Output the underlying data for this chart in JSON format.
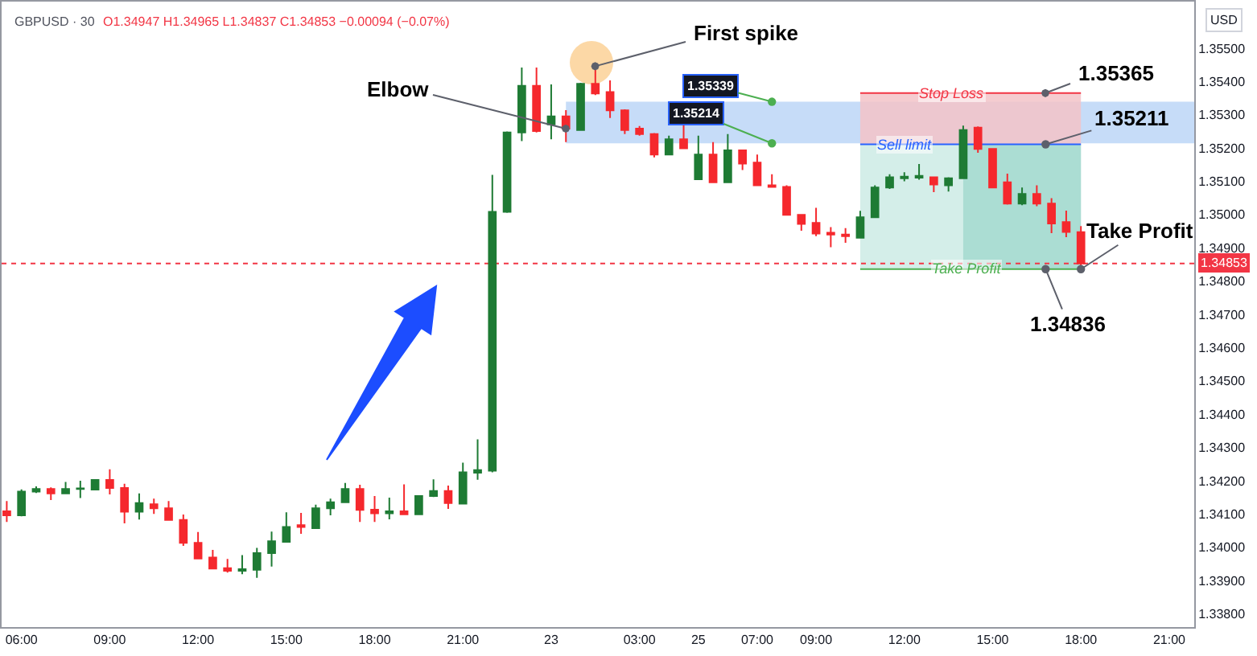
{
  "chart_data": {
    "type": "candlestick",
    "title": "GBPUSD · 30",
    "subtitle": "O1.34947 H1.34965 L1.34837 C1.34853 −0.00094 (−0.07%)",
    "ylabel": "USD",
    "categories": [
      null,
      "06:00",
      null,
      null,
      null,
      null,
      null,
      "09:00",
      null,
      null,
      null,
      null,
      null,
      "12:00",
      null,
      null,
      null,
      null,
      null,
      "15:00",
      null,
      null,
      null,
      null,
      null,
      "18:00",
      null,
      null,
      null,
      null,
      null,
      "21:00",
      null,
      null,
      null,
      null,
      null,
      "23",
      null,
      null,
      null,
      null,
      null,
      "03:00",
      null,
      null,
      null,
      "25",
      null,
      null,
      null,
      "07:00",
      null,
      null,
      null,
      "09:00",
      null,
      null,
      null,
      null,
      null,
      "12:00",
      null,
      null,
      null,
      null,
      null,
      "15:00",
      null,
      null,
      null,
      null,
      null,
      "18:00",
      null,
      null,
      null,
      null,
      null,
      "21:00",
      null
    ],
    "ohlc": [
      [
        1.34108,
        1.34139,
        1.34076,
        1.34096
      ],
      [
        1.34096,
        1.34174,
        1.34093,
        1.34167
      ],
      [
        1.34167,
        1.34183,
        1.34163,
        1.34175
      ],
      [
        1.34175,
        1.3418,
        1.34142,
        1.34162
      ],
      [
        1.34162,
        1.34196,
        1.34162,
        1.34175
      ],
      [
        1.34175,
        1.342,
        1.34148,
        1.34177
      ],
      [
        1.34173,
        1.34202,
        1.34173,
        1.34202
      ],
      [
        1.34202,
        1.34234,
        1.34159,
        1.34178
      ],
      [
        1.34178,
        1.34191,
        1.34072,
        1.34107
      ],
      [
        1.34107,
        1.34162,
        1.34083,
        1.34133
      ],
      [
        1.34129,
        1.34146,
        1.341,
        1.34117
      ],
      [
        1.34117,
        1.34139,
        1.34082,
        1.34082
      ],
      [
        1.34082,
        1.34098,
        1.34004,
        1.34013
      ],
      [
        1.34013,
        1.34046,
        1.33966,
        1.33966
      ],
      [
        1.33969,
        1.33992,
        1.33936,
        1.33936
      ],
      [
        1.33937,
        1.33965,
        1.33924,
        1.33929
      ],
      [
        1.33929,
        1.33976,
        1.33919,
        1.33934
      ],
      [
        1.33932,
        1.33998,
        1.33908,
        1.33982
      ],
      [
        1.33982,
        1.34047,
        1.33942,
        1.34018
      ],
      [
        1.34016,
        1.34105,
        1.34016,
        1.34061
      ],
      [
        1.34066,
        1.34103,
        1.3404,
        1.34061
      ],
      [
        1.34057,
        1.34128,
        1.34057,
        1.34117
      ],
      [
        1.34117,
        1.34146,
        1.34096,
        1.34135
      ],
      [
        1.34135,
        1.34193,
        1.34135,
        1.34175
      ],
      [
        1.34175,
        1.34188,
        1.34076,
        1.34112
      ],
      [
        1.34113,
        1.34154,
        1.34076,
        1.34102
      ],
      [
        1.34102,
        1.34149,
        1.34084,
        1.34108
      ],
      [
        1.34108,
        1.34189,
        1.34099,
        1.34099
      ],
      [
        1.34099,
        1.34154,
        1.34099,
        1.34154
      ],
      [
        1.34154,
        1.34204,
        1.34151,
        1.34169
      ],
      [
        1.34169,
        1.34185,
        1.34115,
        1.34133
      ],
      [
        1.34131,
        1.34254,
        1.34131,
        1.34225
      ],
      [
        1.34224,
        1.34324,
        1.34203,
        1.34232
      ],
      [
        1.3423,
        1.35119,
        1.34225,
        1.35008
      ],
      [
        1.35008,
        1.3525,
        1.35005,
        1.35247
      ],
      [
        1.35247,
        1.35442,
        1.35221,
        1.35387
      ],
      [
        1.35387,
        1.35442,
        1.35247,
        1.35251
      ],
      [
        1.35271,
        1.35391,
        1.35226,
        1.35295
      ],
      [
        1.35295,
        1.35314,
        1.35218,
        1.35258
      ],
      [
        1.35254,
        1.35396,
        1.35254,
        1.35393
      ],
      [
        1.35393,
        1.35448,
        1.35359,
        1.35364
      ],
      [
        1.35368,
        1.35403,
        1.3529,
        1.35313
      ],
      [
        1.35313,
        1.35316,
        1.35242,
        1.35254
      ],
      [
        1.35258,
        1.35266,
        1.35237,
        1.35242
      ],
      [
        1.35242,
        1.35245,
        1.35172,
        1.3518
      ],
      [
        1.3518,
        1.35237,
        1.3518,
        1.35226
      ],
      [
        1.35226,
        1.35269,
        1.35199,
        1.35199
      ],
      [
        1.35106,
        1.35237,
        1.35106,
        1.3518
      ],
      [
        1.3518,
        1.35218,
        1.35097,
        1.35097
      ],
      [
        1.35097,
        1.35242,
        1.35097,
        1.35193
      ],
      [
        1.35193,
        1.35193,
        1.35134,
        1.35153
      ],
      [
        1.35156,
        1.3518,
        1.35088,
        1.35088
      ],
      [
        1.35088,
        1.35121,
        1.35083,
        1.35083
      ],
      [
        1.35083,
        1.35088,
        1.34999,
        1.34999
      ],
      [
        1.34999,
        1.34999,
        1.34951,
        1.34972
      ],
      [
        1.34975,
        1.3502,
        1.34935,
        1.34943
      ],
      [
        1.34945,
        1.34962,
        1.34902,
        1.3494
      ],
      [
        1.3494,
        1.34959,
        1.34915,
        1.34935
      ],
      [
        1.3493,
        1.35011,
        1.3493,
        1.34992
      ],
      [
        1.34992,
        1.35088,
        1.34992,
        1.35081
      ],
      [
        1.35081,
        1.35121,
        1.35077,
        1.35112
      ],
      [
        1.35109,
        1.35127,
        1.351,
        1.35114
      ],
      [
        1.35111,
        1.35152,
        1.35105,
        1.35116
      ],
      [
        1.35112,
        1.35112,
        1.35067,
        1.3509
      ],
      [
        1.35088,
        1.35112,
        1.35069,
        1.35109
      ],
      [
        1.35109,
        1.35267,
        1.35109,
        1.35254
      ],
      [
        1.35261,
        1.35265,
        1.35186,
        1.35197
      ],
      [
        1.35197,
        1.35197,
        1.35081,
        1.35081
      ],
      [
        1.35097,
        1.35123,
        1.3503,
        1.35033
      ],
      [
        1.35033,
        1.35081,
        1.35028,
        1.35062
      ],
      [
        1.35062,
        1.35088,
        1.35025,
        1.35033
      ],
      [
        1.35033,
        1.35049,
        1.34944,
        1.34973
      ],
      [
        1.34977,
        1.35012,
        1.34932,
        1.34948
      ],
      [
        1.34947,
        1.34965,
        1.34837,
        1.34853
      ],
      null,
      null,
      null,
      null,
      null,
      null,
      null
    ],
    "colors": [
      "#f5282d",
      "#1e7b34",
      "#1e7b34",
      "#f5282d",
      "#1e7b34",
      "#1e7b34",
      "#1e7b34",
      "#f5282d",
      "#f5282d",
      "#1e7b34",
      "#f5282d",
      "#f5282d",
      "#f5282d",
      "#f5282d",
      "#f5282d",
      "#f5282d",
      "#1e7b34",
      "#1e7b34",
      "#1e7b34",
      "#1e7b34",
      "#f5282d",
      "#1e7b34",
      "#1e7b34",
      "#1e7b34",
      "#f5282d",
      "#f5282d",
      "#1e7b34",
      "#f5282d",
      "#1e7b34",
      "#1e7b34",
      "#f5282d",
      "#1e7b34",
      "#1e7b34",
      "#1e7b34",
      "#1e7b34",
      "#1e7b34",
      "#f5282d",
      "#1e7b34",
      "#f5282d",
      "#1e7b34",
      "#f5282d",
      "#f5282d",
      "#f5282d",
      "#f5282d",
      "#f5282d",
      "#1e7b34",
      "#f5282d",
      "#1e7b34",
      "#f5282d",
      "#1e7b34",
      "#f5282d",
      "#f5282d",
      "#f5282d",
      "#f5282d",
      "#f5282d",
      "#f5282d",
      "#f5282d",
      "#f5282d",
      "#1e7b34",
      "#1e7b34",
      "#1e7b34",
      "#1e7b34",
      "#1e7b34",
      "#f5282d",
      "#1e7b34",
      "#1e7b34",
      "#f5282d",
      "#f5282d",
      "#f5282d",
      "#1e7b34",
      "#f5282d",
      "#f5282d",
      "#f5282d",
      "#f5282d",
      null,
      null,
      null,
      null,
      null,
      null,
      null
    ],
    "ylim": [
      1.3376,
      1.3564
    ],
    "yticks": [
      {
        "value": 1.338,
        "label": "1.33800"
      },
      {
        "value": 1.339,
        "label": "1.33900"
      },
      {
        "value": 1.34,
        "label": "1.34000"
      },
      {
        "value": 1.341,
        "label": "1.34100"
      },
      {
        "value": 1.342,
        "label": "1.34200"
      },
      {
        "value": 1.343,
        "label": "1.34300"
      },
      {
        "value": 1.344,
        "label": "1.34400"
      },
      {
        "value": 1.345,
        "label": "1.34500"
      },
      {
        "value": 1.346,
        "label": "1.34600"
      },
      {
        "value": 1.347,
        "label": "1.34700"
      },
      {
        "value": 1.348,
        "label": "1.34800"
      },
      {
        "value": 1.349,
        "label": "1.34900"
      },
      {
        "value": 1.35,
        "label": "1.35000"
      },
      {
        "value": 1.351,
        "label": "1.35100"
      },
      {
        "value": 1.352,
        "label": "1.35200"
      },
      {
        "value": 1.353,
        "label": "1.35300"
      },
      {
        "value": 1.354,
        "label": "1.35400"
      },
      {
        "value": 1.355,
        "label": "1.35500"
      }
    ],
    "bands": [
      {
        "axis": "y",
        "from": 1.35214,
        "to": 1.35339,
        "color": "#bcd6f7"
      },
      {
        "axis": "y",
        "from": 1.35211,
        "to": 1.35365,
        "color": "#f3c3c8"
      },
      {
        "axis": "y",
        "from": 1.34836,
        "to": 1.35211,
        "color": "#cdebe5"
      },
      {
        "axis": "y",
        "from": 1.34836,
        "to": 1.35211,
        "color": "#a3d9cf"
      }
    ],
    "ref_lines": [
      {
        "axis": "y",
        "value": 1.34853,
        "label": "1.34853",
        "color": "#f23645",
        "line_style": "dotted"
      },
      {
        "axis": "y",
        "value": 1.35365,
        "label": "Stop Loss",
        "color": "#f23645"
      },
      {
        "axis": "y",
        "value": 1.35211,
        "label": "Sell limit",
        "color": "#2962ff"
      },
      {
        "axis": "y",
        "value": 1.34836,
        "label": "Take Profit",
        "color": "#4caf50"
      }
    ],
    "annotations": [
      "Elbow",
      "First spike",
      {
        "text": "1.35339",
        "y": 1.35339
      },
      {
        "text": "1.35214",
        "y": 1.35214
      },
      "1.35365",
      {
        "text": "1.35211",
        "y": 1.35211
      },
      {
        "text": "Take Profit",
        "y": 1.34836
      },
      {
        "text": "1.34836",
        "y": 1.34836
      }
    ]
  }
}
